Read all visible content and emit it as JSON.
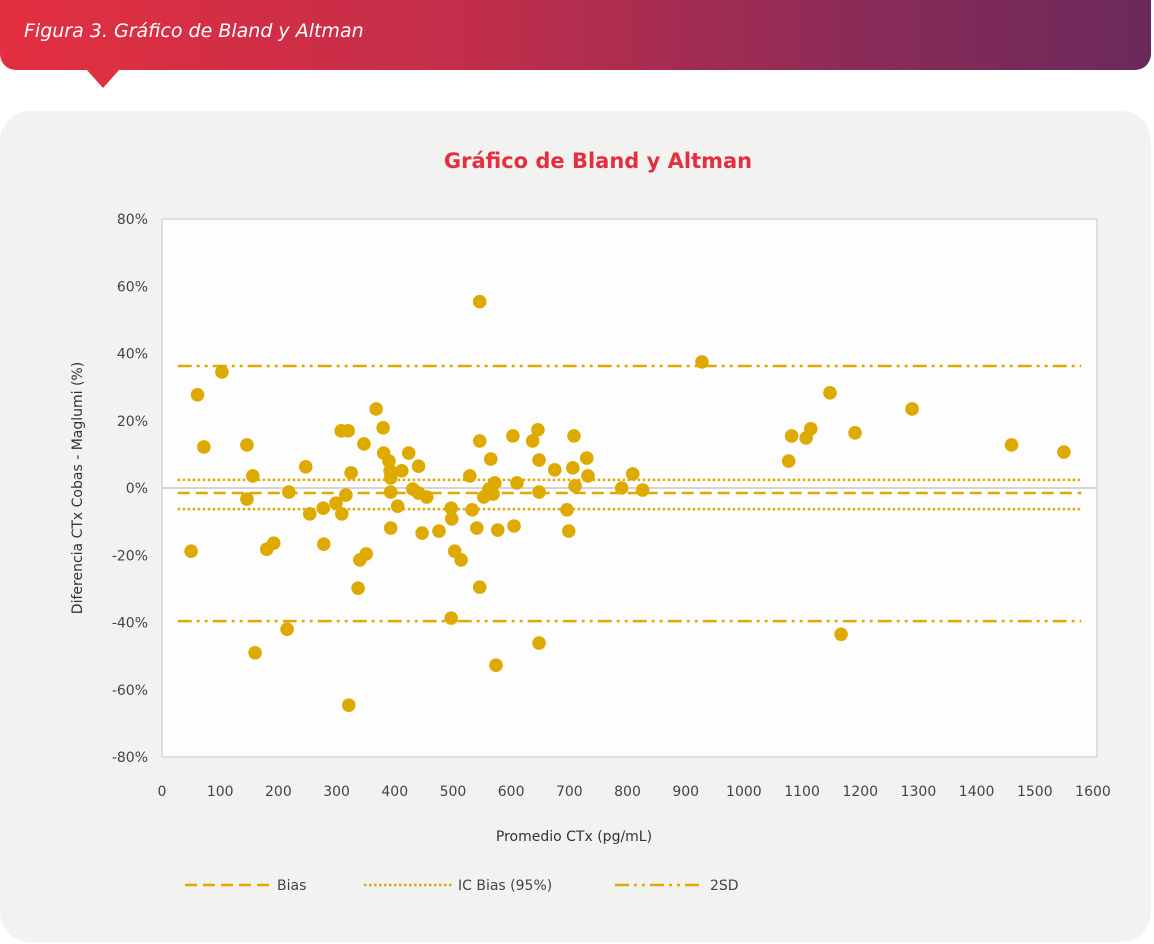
{
  "header": {
    "title": "Figura 3. Gráfico de Bland y Altman"
  },
  "colors": {
    "accent": "#e32f40",
    "series": "#dfaa00",
    "banner_end": "#6a2a5a"
  },
  "chart_data": {
    "type": "scatter",
    "title": "Gráfico de Bland y Altman",
    "xlabel": "Promedio CTx (pg/mL)",
    "ylabel": "Diferencia CTx Cobas - Maglumi (%)",
    "xlim": [
      0,
      1600
    ],
    "ylim": [
      -80,
      80
    ],
    "x_ticks": [
      "0",
      "100",
      "200",
      "300",
      "400",
      "500",
      "600",
      "700",
      "800",
      "900",
      "1000",
      "1100",
      "1200",
      "1300",
      "1400",
      "1500",
      "1600"
    ],
    "y_ticks": [
      "80%",
      "60%",
      "40%",
      "20%",
      "0%",
      "-20%",
      "-40%",
      "-60%",
      "-80%"
    ],
    "grid": false,
    "legend_position": "bottom",
    "legend": [
      "Bias",
      "IC Bias (95%)",
      "2SD"
    ],
    "lines": {
      "bias": -1.5,
      "ic_upper": 2.4,
      "ic_lower": -6.3,
      "sd_upper": 36.3,
      "sd_lower": -39.6,
      "x_range": [
        27,
        1580
      ]
    },
    "points": [
      [
        50,
        -18.8
      ],
      [
        61,
        27.7
      ],
      [
        72,
        12.2
      ],
      [
        103,
        34.5
      ],
      [
        146,
        12.8
      ],
      [
        146,
        -3.3
      ],
      [
        156,
        3.6
      ],
      [
        160,
        -49
      ],
      [
        180,
        -18.2
      ],
      [
        192,
        -16.4
      ],
      [
        215,
        -42
      ],
      [
        218,
        -1.2
      ],
      [
        247,
        6.3
      ],
      [
        254,
        -7.7
      ],
      [
        277,
        -6
      ],
      [
        278,
        -16.7
      ],
      [
        299,
        -4.5
      ],
      [
        308,
        17
      ],
      [
        309,
        -7.7
      ],
      [
        316,
        -2.1
      ],
      [
        320,
        17
      ],
      [
        321,
        -64.6
      ],
      [
        325,
        4.5
      ],
      [
        337,
        -29.8
      ],
      [
        340,
        -21.4
      ],
      [
        347,
        13.1
      ],
      [
        351,
        -19.6
      ],
      [
        368,
        23.5
      ],
      [
        380,
        17.9
      ],
      [
        381,
        10.4
      ],
      [
        390,
        8
      ],
      [
        392,
        5.1
      ],
      [
        393,
        3
      ],
      [
        393,
        -1.2
      ],
      [
        393,
        -11.9
      ],
      [
        405,
        -5.4
      ],
      [
        412,
        5.1
      ],
      [
        424,
        10.4
      ],
      [
        431,
        -0.3
      ],
      [
        441,
        6.5
      ],
      [
        441,
        -1.5
      ],
      [
        447,
        -13.4
      ],
      [
        455,
        -2.7
      ],
      [
        476,
        -12.8
      ],
      [
        497,
        -38.7
      ],
      [
        497,
        -6
      ],
      [
        498,
        -9.2
      ],
      [
        503,
        -18.8
      ],
      [
        514,
        -21.4
      ],
      [
        529,
        3.6
      ],
      [
        533,
        -6.5
      ],
      [
        541,
        -11.9
      ],
      [
        546,
        55.4
      ],
      [
        546,
        14
      ],
      [
        546,
        -29.5
      ],
      [
        553,
        -2.7
      ],
      [
        562,
        -0.3
      ],
      [
        565,
        8.6
      ],
      [
        569,
        -1.8
      ],
      [
        572,
        1.5
      ],
      [
        574,
        -52.7
      ],
      [
        577,
        -12.5
      ],
      [
        603,
        15.5
      ],
      [
        605,
        -11.3
      ],
      [
        610,
        1.5
      ],
      [
        637,
        14
      ],
      [
        646,
        17.3
      ],
      [
        648,
        8.3
      ],
      [
        648,
        -1.2
      ],
      [
        648,
        -46.1
      ],
      [
        675,
        5.4
      ],
      [
        696,
        -6.5
      ],
      [
        699,
        -12.8
      ],
      [
        706,
        6
      ],
      [
        708,
        15.5
      ],
      [
        710,
        0.6
      ],
      [
        730,
        8.9
      ],
      [
        732,
        3.6
      ],
      [
        790,
        0
      ],
      [
        809,
        4.2
      ],
      [
        826,
        -0.6
      ],
      [
        928,
        37.5
      ],
      [
        1077,
        8
      ],
      [
        1082,
        15.5
      ],
      [
        1107,
        14.9
      ],
      [
        1115,
        17.6
      ],
      [
        1148,
        28.3
      ],
      [
        1167,
        -43.5
      ],
      [
        1191,
        16.4
      ],
      [
        1289,
        23.5
      ],
      [
        1460,
        12.8
      ],
      [
        1550,
        10.7
      ]
    ]
  }
}
